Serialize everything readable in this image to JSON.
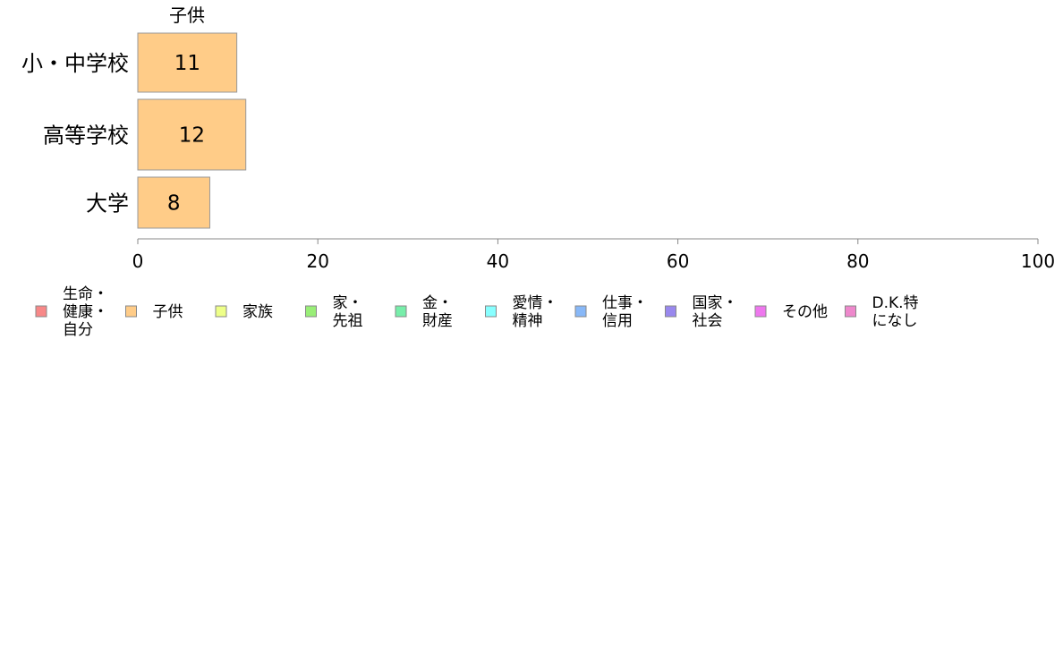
{
  "chart_data": {
    "type": "bar",
    "orientation": "horizontal",
    "series_label": "子供",
    "categories": [
      "小・中学校",
      "高等学校",
      "大学"
    ],
    "series": [
      {
        "name": "子供",
        "values": [
          11,
          12,
          8
        ]
      }
    ],
    "data_labels": [
      "11",
      "12",
      "8"
    ],
    "xlim": [
      0,
      100
    ],
    "x_ticks": [
      0,
      20,
      40,
      60,
      80,
      100
    ],
    "x_tick_labels": [
      "0",
      "20",
      "40",
      "60",
      "80",
      "100"
    ],
    "title": "",
    "xlabel": "",
    "ylabel": "",
    "grid": false,
    "legend_position": "bottom",
    "bar_color": "#FFCC88",
    "legend": [
      {
        "lines": [
          "生命・",
          "健康・",
          "自分"
        ],
        "color": "#F88888"
      },
      {
        "lines": [
          "子供"
        ],
        "color": "#FFCC88"
      },
      {
        "lines": [
          "家族"
        ],
        "color": "#EEFF88"
      },
      {
        "lines": [
          "家・",
          "先祖"
        ],
        "color": "#99EE77"
      },
      {
        "lines": [
          "金・",
          "財産"
        ],
        "color": "#77EEAA"
      },
      {
        "lines": [
          "愛情・",
          "精神"
        ],
        "color": "#88FFFF"
      },
      {
        "lines": [
          "仕事・",
          "信用"
        ],
        "color": "#88B8F8"
      },
      {
        "lines": [
          "国家・",
          "社会"
        ],
        "color": "#9988EE"
      },
      {
        "lines": [
          "その他"
        ],
        "color": "#EE77EE"
      },
      {
        "lines": [
          "D.K.特",
          "になし"
        ],
        "color": "#EE88CC"
      }
    ]
  }
}
